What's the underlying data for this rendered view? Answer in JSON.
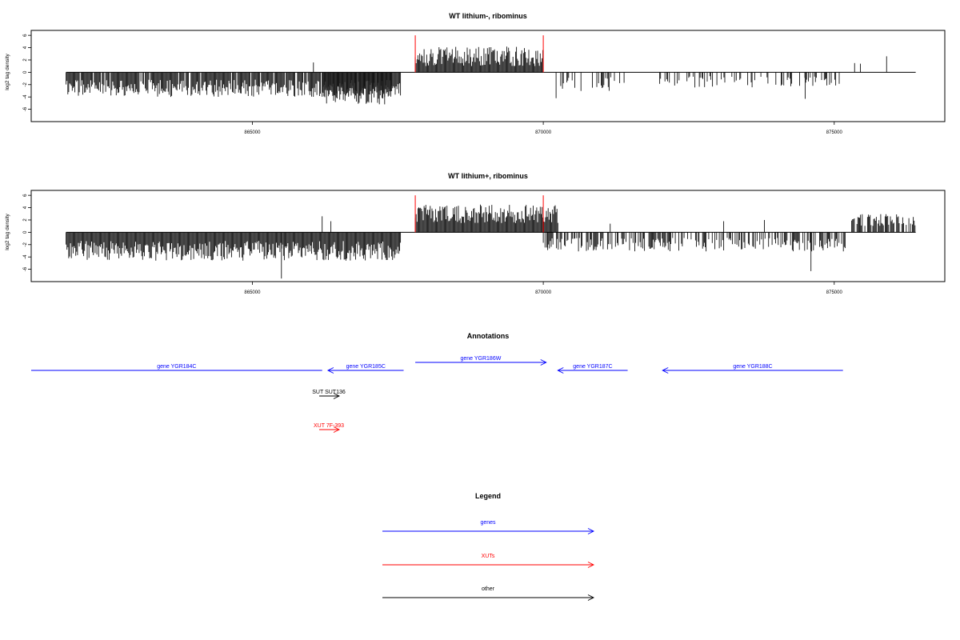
{
  "chart_data": [
    {
      "type": "bar",
      "title": "WT lithium-, ribominus",
      "ylabel": "log2 tag density",
      "xlim": [
        861200,
        876900
      ],
      "ylim": [
        -8,
        6.8
      ],
      "y_ticks": [
        6,
        4,
        2,
        0,
        -2,
        -4,
        -6
      ],
      "x_ticks": [
        865000,
        870000,
        875000
      ],
      "x_tick_labels": [
        "865000",
        "870000",
        "875000"
      ],
      "baseline": {
        "x": [
          861800,
          876400
        ],
        "y": 0
      },
      "red_markers": [
        {
          "x": 867800,
          "y": 6
        },
        {
          "x": 870000,
          "y": 6
        }
      ],
      "segments": [
        {
          "x": [
            861800,
            867550
          ],
          "density": 0.95,
          "sign": -1,
          "mean": 2.6,
          "spread": 1.4,
          "seed": 11
        },
        {
          "x": [
            866200,
            867400
          ],
          "density": 1.0,
          "sign": -1,
          "mean": 3.6,
          "spread": 1.6,
          "seed": 12
        },
        {
          "x": [
            867800,
            870000
          ],
          "density": 1.0,
          "sign": 1,
          "mean": 2.6,
          "spread": 1.6,
          "seed": 13
        },
        {
          "x": [
            870300,
            871400
          ],
          "density": 0.35,
          "sign": -1,
          "mean": 2.1,
          "spread": 1.3,
          "seed": 14
        },
        {
          "x": [
            872000,
            875100
          ],
          "density": 0.35,
          "sign": -1,
          "mean": 1.6,
          "spread": 1.0,
          "seed": 15
        }
      ],
      "spikes": [
        {
          "x": 866050,
          "y": 1.6
        },
        {
          "x": 874500,
          "y": -4.3
        },
        {
          "x": 875350,
          "y": 1.5
        },
        {
          "x": 875450,
          "y": 1.4
        },
        {
          "x": 875900,
          "y": 2.6
        },
        {
          "x": 870220,
          "y": -4.2
        }
      ]
    },
    {
      "type": "bar",
      "title": "WT lithium+, ribominus",
      "ylabel": "log2 tag density",
      "xlim": [
        861200,
        876900
      ],
      "ylim": [
        -8,
        6.8
      ],
      "y_ticks": [
        6,
        4,
        2,
        0,
        -2,
        -4,
        -6
      ],
      "x_ticks": [
        865000,
        870000,
        875000
      ],
      "x_tick_labels": [
        "865000",
        "870000",
        "875000"
      ],
      "baseline": {
        "x": [
          861800,
          876400
        ],
        "y": 0
      },
      "red_markers": [
        {
          "x": 867800,
          "y": 6
        },
        {
          "x": 870000,
          "y": 6
        }
      ],
      "segments": [
        {
          "x": [
            861800,
            867550
          ],
          "density": 1.0,
          "sign": -1,
          "mean": 3.0,
          "spread": 1.6,
          "seed": 21
        },
        {
          "x": [
            867800,
            870250
          ],
          "density": 1.0,
          "sign": 1,
          "mean": 3.0,
          "spread": 1.5,
          "seed": 22
        },
        {
          "x": [
            870000,
            875200
          ],
          "density": 0.55,
          "sign": -1,
          "mean": 2.0,
          "spread": 1.1,
          "seed": 23
        },
        {
          "x": [
            875300,
            876400
          ],
          "density": 0.7,
          "sign": 1,
          "mean": 2.0,
          "spread": 1.0,
          "seed": 24
        }
      ],
      "spikes": [
        {
          "x": 866200,
          "y": 2.6
        },
        {
          "x": 866350,
          "y": 1.8
        },
        {
          "x": 865500,
          "y": -7.5
        },
        {
          "x": 874600,
          "y": -6.3
        },
        {
          "x": 871150,
          "y": 1.4
        },
        {
          "x": 873100,
          "y": 1.8
        },
        {
          "x": 873800,
          "y": 2.0
        }
      ]
    }
  ],
  "annotations": {
    "title": "Annotations",
    "features": [
      {
        "label": "gene YGR184C",
        "x_from": 861200,
        "x_to": 866200,
        "direction": "none",
        "color": "#0000ff",
        "row": 2
      },
      {
        "label": "gene YGR185C",
        "x_from": 866300,
        "x_to": 867600,
        "direction": "left",
        "color": "#0000ff",
        "row": 2
      },
      {
        "label": "gene YGR186W",
        "x_from": 867800,
        "x_to": 870050,
        "direction": "right",
        "color": "#0000ff",
        "row": 1
      },
      {
        "label": "gene YGR187C",
        "x_from": 870250,
        "x_to": 871450,
        "direction": "left",
        "color": "#0000ff",
        "row": 2
      },
      {
        "label": "gene YGR188C",
        "x_from": 872050,
        "x_to": 875150,
        "direction": "left",
        "color": "#0000ff",
        "row": 2
      },
      {
        "label": "SUT SUT136",
        "x_from": 866200,
        "x_to": 866550,
        "direction": "right",
        "color": "#000000",
        "row": 3
      },
      {
        "label": "XUT 7F-393",
        "x_from": 866200,
        "x_to": 866550,
        "direction": "right",
        "color": "#ff0000",
        "row": 4
      }
    ]
  },
  "legend": {
    "title": "Legend",
    "items": [
      {
        "label": "genes",
        "color": "#0000ff"
      },
      {
        "label": "XUTs",
        "color": "#ff0000"
      },
      {
        "label": "other",
        "color": "#000000"
      }
    ]
  }
}
